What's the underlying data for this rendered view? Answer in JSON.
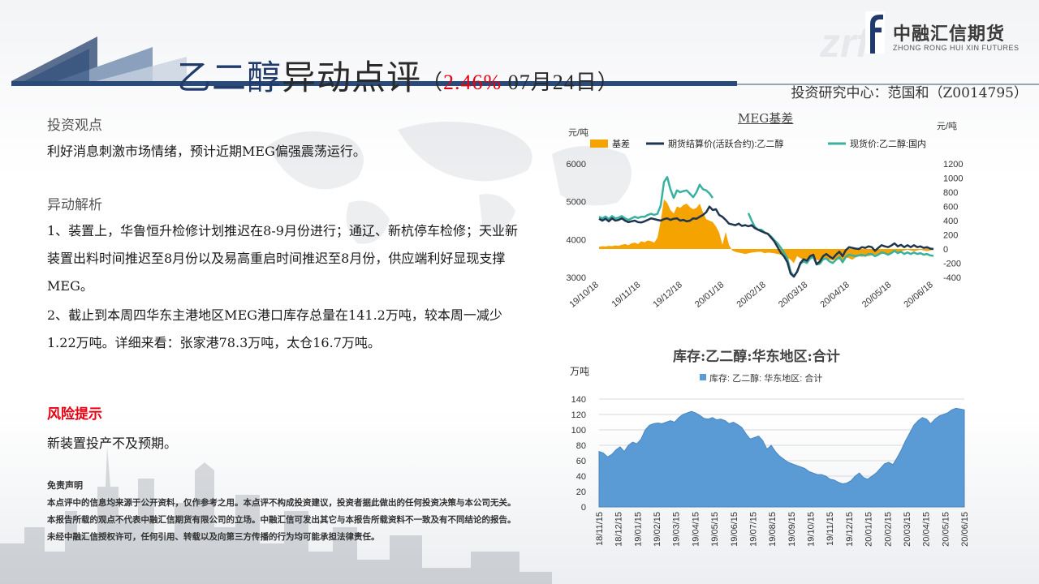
{
  "header": {
    "title_part1": "乙二醇",
    "title_part2": "异动点评",
    "paren_open": "（",
    "change_pct": "2.46%",
    "date": " 07月24日",
    "paren_close": "）",
    "author": "投资研究中心：范国和（Z0014795）"
  },
  "brand": {
    "name": "中融汇信期货",
    "english": "ZHONG RONG HUI XIN FUTURES"
  },
  "left": {
    "view_title": "投资观点",
    "view_text": "利好消息刺激市场情绪，预计近期MEG偏强震荡运行。",
    "analysis_title": "异动解析",
    "analysis_1": "1、装置上，华鲁恒升检修计划推迟在8-9月份进行；通辽、新杭停车检修；天业新装置出料时间推迟至8月份以及易高重启时间推迟至8月份，供应端利好显现支撑MEG。",
    "analysis_2": "2、截止到本周四华东主港地区MEG港口库存总量在141.2万吨，较本周一减少1.22万吨。详细来看：张家港78.3万吨，太仓16.7万吨。",
    "risk_title": "风险提示",
    "risk_text": "新装置投产不及预期。",
    "disclaimer_title": "免责声明",
    "disclaimer_text": "本点评中的信息均来源于公开资料，仅作参考之用。本点评不构成投资建议，投资者据此做出的任何投资决策与本公司无关。本报告所载的观点不代表中融汇信期货有限公司的立场。中融汇信可发出其它与本报告所载资料不一致及有不同结论的报告。未经中融汇信授权许可，任何引用、转载以及向第三方传播的行为均可能承担法律责任。"
  },
  "chart_data": [
    {
      "type": "line",
      "title": "MEG基差",
      "left_unit": "元/吨",
      "right_unit": "元/吨",
      "left_ylim": [
        3000,
        6000
      ],
      "left_ticks": [
        "6000",
        "5000",
        "4000",
        "3000"
      ],
      "right_ylim": [
        -400,
        1200
      ],
      "right_ticks": [
        "1200",
        "1000",
        "800",
        "600",
        "400",
        "200",
        "0",
        "-200",
        "-400"
      ],
      "x_ticks": [
        "19/10/18",
        "19/11/18",
        "19/12/18",
        "20/01/18",
        "20/02/18",
        "20/03/18",
        "20/04/18",
        "20/05/18",
        "20/06/18"
      ],
      "legend": [
        "基差",
        "期货结算价(活跃合约):乙二醇",
        "现货价:乙二醇:国内"
      ],
      "colors": {
        "basis": "#f5a300",
        "futures": "#1f3550",
        "spot": "#3ab09e"
      },
      "x_positions": [
        0,
        4,
        8,
        12,
        16,
        20,
        24,
        28,
        32,
        36,
        40,
        44,
        48,
        52,
        56,
        60,
        64,
        68,
        72,
        76,
        80,
        84,
        88,
        92,
        96,
        100,
        104,
        108,
        112,
        116,
        120,
        124,
        128,
        132,
        136,
        140,
        144,
        148,
        152,
        156,
        160,
        164,
        168,
        172,
        176,
        180,
        184,
        188,
        192,
        196,
        200,
        204,
        208,
        212,
        216,
        220,
        224,
        228,
        232,
        236,
        240,
        244,
        248,
        252,
        256,
        260,
        264,
        268,
        272,
        276,
        280,
        284,
        288,
        292,
        296,
        300,
        304,
        308,
        312,
        316,
        320,
        324,
        328,
        332,
        336,
        340,
        344,
        348,
        352,
        356,
        360,
        364,
        368,
        372,
        376,
        380,
        384,
        388,
        392,
        396,
        400,
        404,
        408,
        412
      ],
      "basis": [
        30,
        40,
        35,
        45,
        40,
        50,
        45,
        60,
        70,
        55,
        80,
        90,
        70,
        110,
        95,
        120,
        110,
        90,
        160,
        400,
        700,
        650,
        550,
        500,
        600,
        580,
        620,
        640,
        590,
        560,
        580,
        640,
        520,
        420,
        400,
        380,
        320,
        230,
        60,
        240,
        60,
        -20,
        -40,
        -50,
        -60,
        -70,
        -60,
        -50,
        -45,
        -40,
        -40,
        -60,
        -50,
        -55,
        -60,
        -70,
        -80,
        -90,
        -120,
        -150,
        -200,
        -100,
        -130,
        -150,
        -160,
        -140,
        -120,
        -150,
        -170,
        -130,
        -140,
        -150,
        -160,
        -140,
        -150,
        -160,
        -120,
        -130,
        -150,
        -120,
        -100,
        -110,
        -100,
        -100,
        -90,
        -80,
        -90,
        -70,
        -60,
        -70,
        -50,
        -40,
        -50,
        -30,
        -20,
        -10,
        -20,
        -30,
        -20,
        -10,
        -20,
        -30,
        -20,
        -10
      ],
      "futures": [
        4550,
        4500,
        4550,
        4480,
        4560,
        4500,
        4520,
        4560,
        4500,
        4460,
        4480,
        4500,
        4460,
        4450,
        4480,
        4520,
        4560,
        4540,
        4520,
        4500,
        4540,
        4560,
        4520,
        4550,
        4560,
        4500,
        4520,
        4480,
        4500,
        4560,
        4550,
        4600,
        4650,
        4720,
        4870,
        4780,
        4800,
        4650,
        4600,
        4520,
        4420,
        4400,
        4380,
        4420,
        4360,
        4380,
        4350,
        4380,
        4300,
        4260,
        4220,
        4180,
        4150,
        4050,
        3950,
        3800,
        3650,
        3550,
        3400,
        3100,
        3020,
        3150,
        3380,
        3480,
        3440,
        3560,
        3600,
        3350,
        3420,
        3560,
        3620,
        3550,
        3500,
        3600,
        3680,
        3560,
        3720,
        3800,
        3780,
        3760,
        3750,
        3800,
        3780,
        3820,
        3800,
        3700,
        3780,
        3850,
        3820,
        3800,
        3840,
        3900,
        3820,
        3860,
        3800,
        3850,
        3800,
        3850,
        3800,
        3820,
        3780,
        3800,
        3760,
        3750
      ],
      "spot": [
        4600,
        4560,
        4610,
        4540,
        4620,
        4560,
        4580,
        4620,
        4560,
        4520,
        4560,
        4600,
        4570,
        4600,
        4600,
        4650,
        4680,
        4650,
        4680,
        4900,
        5520,
        5650,
        5320,
        5100,
        5300,
        5250,
        5280,
        5300,
        5210,
        5120,
        5250,
        5450,
        5330,
        5300,
        5220,
        5100,
        null,
        null,
        null,
        null,
        null,
        null,
        null,
        null,
        null,
        null,
        4700,
        4500,
        4330,
        4260,
        4260,
        4190,
        4150,
        4080,
        3980,
        3900,
        3780,
        3650,
        3500,
        3150,
        3030,
        3150,
        3360,
        3420,
        3380,
        3500,
        3540,
        3340,
        3360,
        3480,
        3500,
        3420,
        3380,
        3470,
        3540,
        3400,
        3540,
        3600,
        3580,
        3560,
        3580,
        3600,
        3570,
        3620,
        3620,
        3560,
        3600,
        3660,
        3640,
        3600,
        3640,
        3700,
        3640,
        3680,
        3620,
        3660,
        3620,
        3660,
        3620,
        3640,
        3600,
        3620,
        3580,
        3570
      ]
    },
    {
      "type": "area",
      "title": "库存:乙二醇:华东地区:合计",
      "unit": "万吨",
      "ylim": [
        0,
        140
      ],
      "y_ticks": [
        "140",
        "120",
        "100",
        "80",
        "60",
        "40",
        "20",
        "0"
      ],
      "legend": [
        "库存: 乙二醇: 华东地区: 合计"
      ],
      "color": "#5b9bd5",
      "x_ticks": [
        "18/11/15",
        "18/12/15",
        "19/01/15",
        "19/02/15",
        "19/03/15",
        "19/04/15",
        "19/05/15",
        "19/06/15",
        "19/07/15",
        "19/08/15",
        "19/09/15",
        "19/10/15",
        "19/11/15",
        "19/12/15",
        "20/01/15",
        "20/02/15",
        "20/03/15",
        "20/04/15",
        "20/05/15",
        "20/06/15"
      ],
      "values": [
        72,
        70,
        65,
        68,
        74,
        78,
        72,
        80,
        84,
        82,
        88,
        100,
        106,
        108,
        109,
        108,
        110,
        112,
        110,
        116,
        120,
        122,
        124,
        122,
        119,
        115,
        114,
        116,
        113,
        114,
        112,
        108,
        110,
        107,
        103,
        95,
        88,
        90,
        92,
        86,
        75,
        80,
        72,
        66,
        62,
        58,
        56,
        54,
        52,
        50,
        46,
        44,
        42,
        42,
        40,
        36,
        35,
        32,
        30,
        31,
        34,
        40,
        44,
        38,
        36,
        40,
        44,
        50,
        56,
        58,
        55,
        64,
        74,
        86,
        96,
        106,
        112,
        116,
        114,
        108,
        114,
        118,
        120,
        122,
        126,
        128,
        127,
        126
      ]
    }
  ]
}
